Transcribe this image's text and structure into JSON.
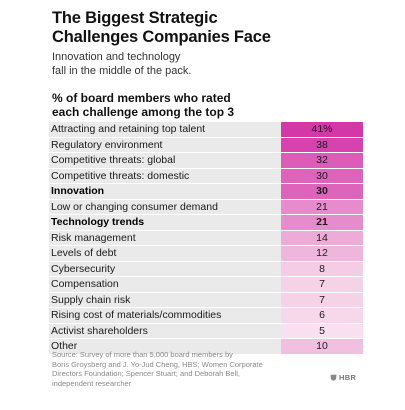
{
  "header": {
    "title_line1": "The Biggest Strategic",
    "title_line2": "Challenges Companies Face",
    "subtitle_line1": "Innovation and technology",
    "subtitle_line2": "fall in the middle of the pack.",
    "heading_line1": "% of board members who rated",
    "heading_line2": "each challenge among the top 3"
  },
  "chart_data": {
    "type": "table",
    "title": "The Biggest Strategic Challenges Companies Face",
    "subtitle": "Innovation and technology fall in the middle of the pack.",
    "ylabel": "% of board members who rated each challenge among the top 3",
    "rows": [
      {
        "label": "Attracting and retaining top talent",
        "display": "41%",
        "value": 41,
        "bold": false
      },
      {
        "label": "Regulatory environment",
        "display": "38",
        "value": 38,
        "bold": false
      },
      {
        "label": "Competitive threats: global",
        "display": "32",
        "value": 32,
        "bold": false
      },
      {
        "label": "Competitive threats: domestic",
        "display": "30",
        "value": 30,
        "bold": false
      },
      {
        "label": "Innovation",
        "display": "30",
        "value": 30,
        "bold": true
      },
      {
        "label": "Low or changing consumer demand",
        "display": "21",
        "value": 21,
        "bold": false
      },
      {
        "label": "Technology trends",
        "display": "21",
        "value": 21,
        "bold": true
      },
      {
        "label": "Risk management",
        "display": "14",
        "value": 14,
        "bold": false
      },
      {
        "label": "Levels of debt",
        "display": "12",
        "value": 12,
        "bold": false
      },
      {
        "label": "Cybersecurity",
        "display": "8",
        "value": 8,
        "bold": false
      },
      {
        "label": "Compensation",
        "display": "7",
        "value": 7,
        "bold": false
      },
      {
        "label": "Supply chain risk",
        "display": "7",
        "value": 7,
        "bold": false
      },
      {
        "label": "Rising cost of materials/commodities",
        "display": "6",
        "value": 6,
        "bold": false
      },
      {
        "label": "Activist shareholders",
        "display": "5",
        "value": 5,
        "bold": false
      },
      {
        "label": "Other",
        "display": "10",
        "value": 10,
        "bold": false
      }
    ],
    "colors": {
      "label_cell": "#eaeaea",
      "scale": [
        "#f8e0ee",
        "#d437a8"
      ]
    }
  },
  "footer": {
    "source_line1": "Source: Survey of more than 5,000 board members by",
    "source_line2": "Boris Groysberg and J. Yo-Jud Cheng, HBS; Women Corporate",
    "source_line3": "Directors Foundation; Spencer Stuart; and Deborah Bell,",
    "source_line4": "independent researcher",
    "brand": "HBR",
    "brand_icon": "shield-icon"
  }
}
